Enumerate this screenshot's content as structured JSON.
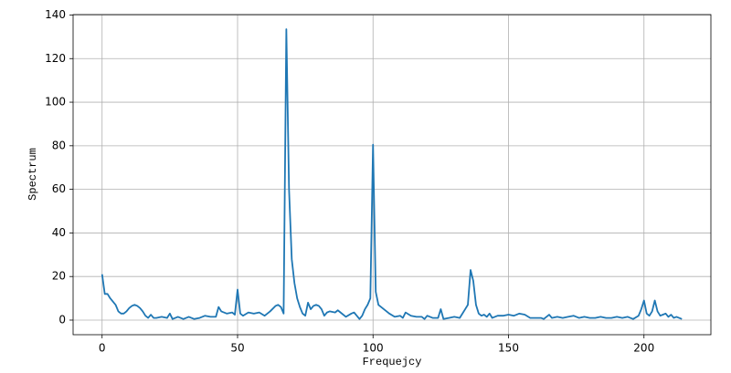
{
  "chart_data": {
    "type": "line",
    "x_label": "Frequejcy",
    "y_label": "Spectrum",
    "x": [
      0,
      1,
      2,
      3,
      4,
      5,
      6,
      7,
      8,
      9,
      10,
      11,
      12,
      13,
      14,
      15,
      16,
      17,
      18,
      19,
      20,
      22,
      24,
      25,
      26,
      28,
      30,
      32,
      34,
      36,
      38,
      40,
      42,
      43,
      44,
      46,
      48,
      49,
      50,
      51,
      52,
      54,
      56,
      58,
      60,
      62,
      64,
      65,
      66,
      67,
      68,
      69,
      70,
      71,
      72,
      73,
      74,
      75,
      76,
      77,
      78,
      79,
      80,
      81,
      82,
      83,
      84,
      86,
      87,
      88,
      90,
      92,
      93,
      94,
      95,
      96,
      97,
      98,
      99,
      100,
      101,
      102,
      104,
      106,
      108,
      110,
      111,
      112,
      114,
      116,
      118,
      119,
      120,
      122,
      124,
      125,
      126,
      128,
      130,
      132,
      134,
      135,
      136,
      137,
      138,
      139,
      140,
      141,
      142,
      143,
      144,
      146,
      148,
      150,
      152,
      154,
      156,
      158,
      160,
      162,
      163,
      165,
      166,
      168,
      170,
      172,
      174,
      176,
      178,
      180,
      182,
      184,
      186,
      188,
      190,
      192,
      194,
      196,
      198,
      199,
      200,
      201,
      202,
      203,
      204,
      205,
      206,
      207,
      208,
      209,
      210,
      211,
      212,
      214
    ],
    "values": [
      21,
      12,
      12,
      10,
      8.5,
      7,
      4,
      3,
      3,
      4,
      5.5,
      6.5,
      7,
      6.5,
      5.5,
      4,
      2,
      1,
      2.5,
      1,
      1,
      1.5,
      1,
      3,
      0.5,
      1.5,
      0.5,
      1.5,
      0.5,
      1,
      2,
      1.5,
      1.5,
      6,
      4,
      3,
      3.5,
      2.5,
      14,
      3,
      2,
      3.5,
      3,
      3.5,
      2,
      4,
      6.5,
      7,
      6,
      3,
      133.5,
      60,
      28,
      17,
      10,
      6,
      3,
      2,
      8,
      5,
      6.5,
      7,
      6.5,
      5,
      2,
      3.5,
      4,
      3.5,
      4.5,
      3.5,
      1.5,
      3,
      3.5,
      2,
      0.5,
      2,
      5,
      7,
      10,
      80.5,
      13,
      7,
      5,
      3,
      1.5,
      2,
      1,
      3.5,
      2,
      1.5,
      1.5,
      0.5,
      2,
      1,
      1,
      5,
      0.5,
      1,
      1.5,
      1,
      5,
      7,
      23,
      18,
      7,
      3,
      2,
      2.5,
      1.5,
      3,
      1,
      2,
      2,
      2.5,
      2,
      3,
      2.5,
      1,
      1,
      1,
      0.5,
      2.5,
      1,
      1.5,
      1,
      1.5,
      2,
      1,
      1.5,
      1,
      1,
      1.5,
      1,
      1,
      1.5,
      1,
      1.5,
      0.5,
      2,
      5,
      9,
      3,
      2,
      4,
      9,
      4,
      2,
      2.5,
      3,
      1.5,
      2.5,
      1,
      1.5,
      0.5
    ],
    "color": "#1f77b4",
    "xlim": [
      -10.7,
      224.7
    ],
    "ylim": [
      -6.7,
      140.2
    ],
    "xticks": [
      0,
      50,
      100,
      150,
      200
    ],
    "yticks": [
      0,
      20,
      40,
      60,
      80,
      100,
      120,
      140
    ],
    "grid": true
  }
}
